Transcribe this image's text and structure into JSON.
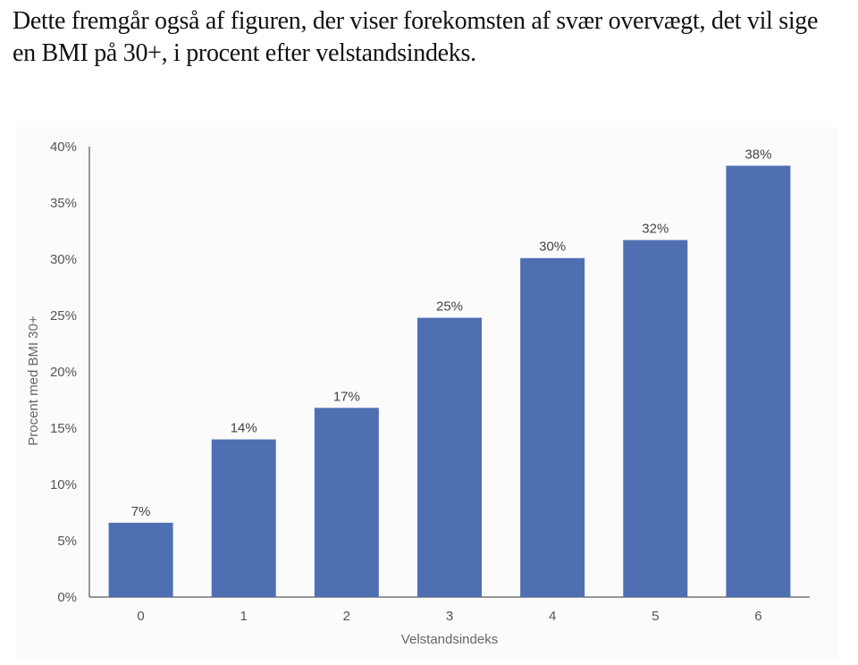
{
  "article": {
    "intro": "Dette fremgår også af figuren, der viser forekomsten af svær overvægt, det vil sige en BMI på 30+, i procent efter velstandsindeks."
  },
  "chart_data": {
    "type": "bar",
    "categories": [
      "0",
      "1",
      "2",
      "3",
      "4",
      "5",
      "6"
    ],
    "values": [
      6.6,
      14.0,
      16.8,
      24.8,
      30.1,
      31.7,
      38.3
    ],
    "data_labels": [
      "7%",
      "14%",
      "17%",
      "25%",
      "30%",
      "32%",
      "38%"
    ],
    "xlabel": "Velstandsindeks",
    "ylabel": "Procent med BMI 30+",
    "ylim": [
      0,
      40
    ],
    "yticks": [
      0,
      5,
      10,
      15,
      20,
      25,
      30,
      35,
      40
    ],
    "ytick_labels": [
      "0%",
      "5%",
      "10%",
      "15%",
      "20%",
      "25%",
      "30%",
      "35%",
      "40%"
    ],
    "bar_color": "#4f6fb3",
    "grid": false,
    "legend": "none"
  }
}
